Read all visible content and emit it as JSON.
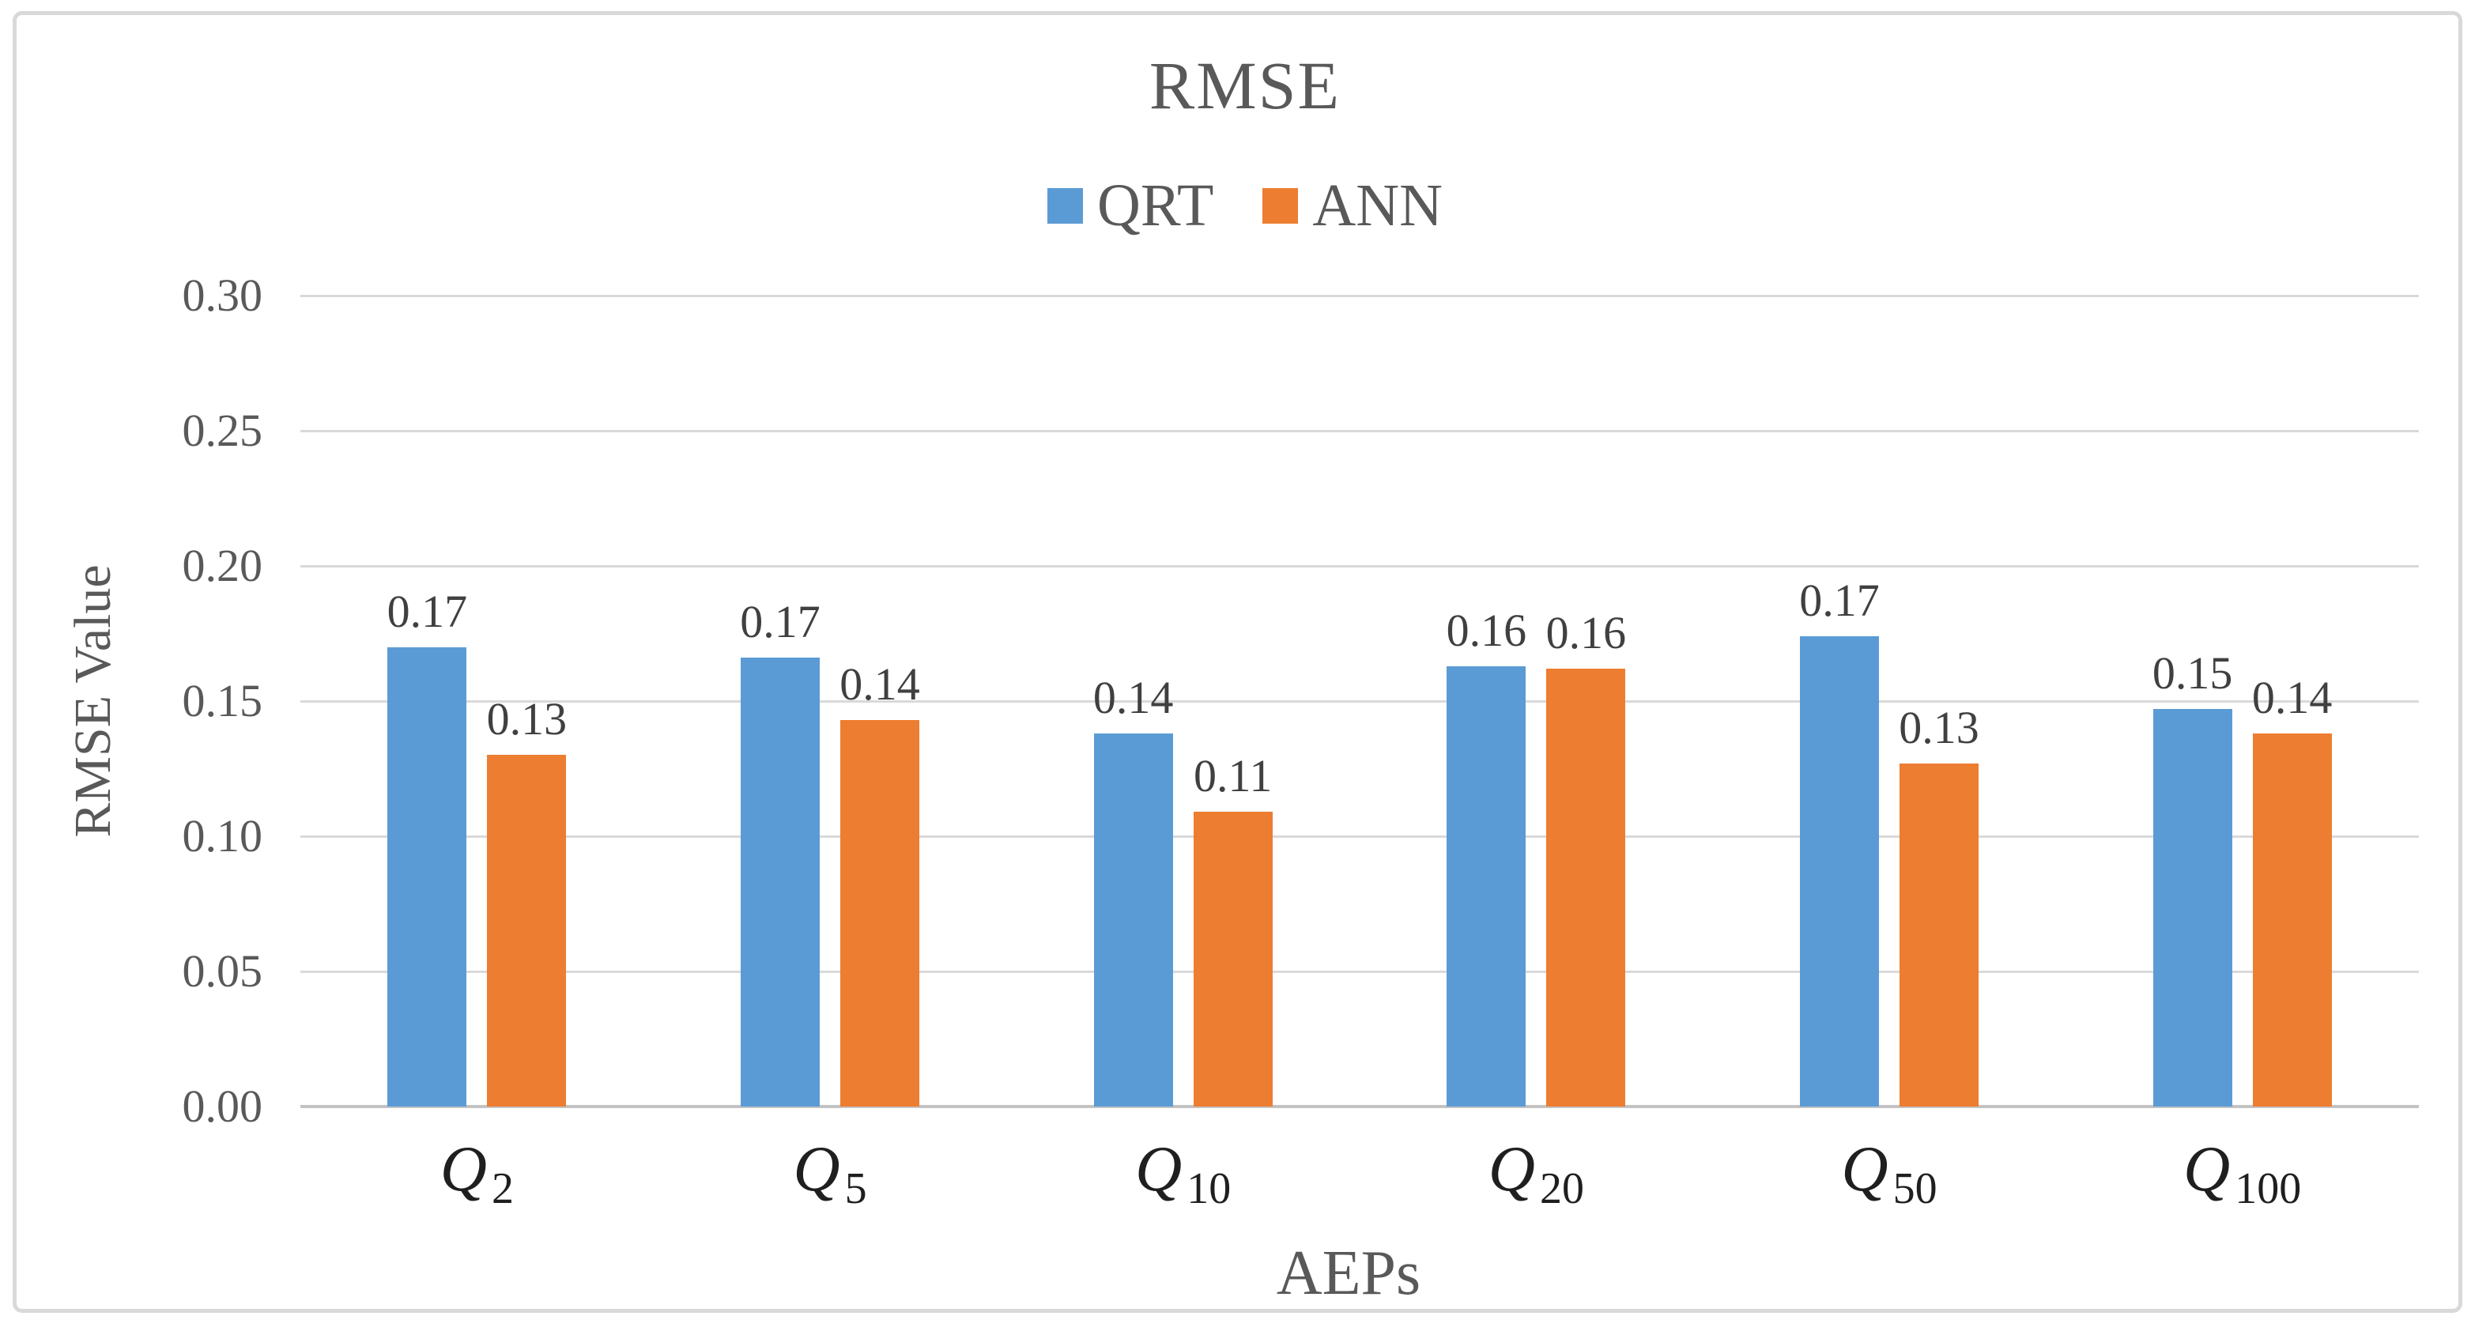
{
  "chart_data": {
    "type": "bar",
    "title": "RMSE",
    "xlabel": "AEPs",
    "ylabel": "RMSE Value",
    "categories": [
      {
        "base": "Q",
        "sub": "2"
      },
      {
        "base": "Q",
        "sub": "5"
      },
      {
        "base": "Q",
        "sub": "10"
      },
      {
        "base": "Q",
        "sub": "20"
      },
      {
        "base": "Q",
        "sub": "50"
      },
      {
        "base": "Q",
        "sub": "100"
      }
    ],
    "series": [
      {
        "name": "QRT",
        "color": "#5B9BD5",
        "values": [
          0.17,
          0.166,
          0.138,
          0.163,
          0.174,
          0.147
        ],
        "labels": [
          "0.17",
          "0.17",
          "0.14",
          "0.16",
          "0.17",
          "0.15"
        ]
      },
      {
        "name": "ANN",
        "color": "#ED7D31",
        "values": [
          0.13,
          0.143,
          0.109,
          0.162,
          0.127,
          0.138
        ],
        "labels": [
          "0.13",
          "0.14",
          "0.11",
          "0.16",
          "0.13",
          "0.14"
        ]
      }
    ],
    "ylim": [
      0,
      0.3
    ],
    "y_ticks": [
      "0.00",
      "0.05",
      "0.10",
      "0.15",
      "0.20",
      "0.25",
      "0.30"
    ],
    "grid": true,
    "legend_position": "top"
  },
  "colors": {
    "title_text": "#595959",
    "tick_text": "#595959",
    "data_label_text": "#404040",
    "gridline": "#D9D9D9",
    "axis_line": "#C3C3C3",
    "frame_border": "#D9D9D9"
  }
}
